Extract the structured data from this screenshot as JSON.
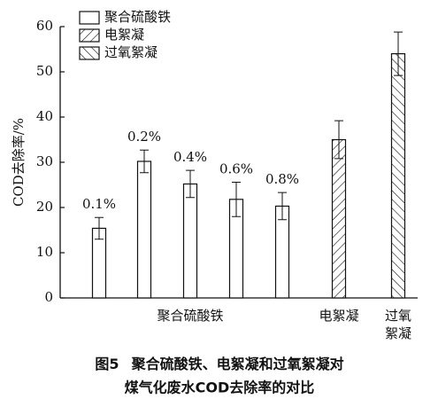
{
  "chart_data": {
    "type": "bar",
    "y_label": "COD去除率/%",
    "ylim": [
      0,
      60
    ],
    "yticks": [
      0,
      10,
      20,
      30,
      40,
      50,
      60
    ],
    "x_labels": [
      [
        "聚合硫酸铁"
      ],
      [
        "电絮凝"
      ],
      [
        "过氧",
        "絮凝"
      ]
    ],
    "series": [
      {
        "name": "聚合硫酸铁",
        "color": "#ffffff",
        "hatch": "none",
        "values": [
          15.4,
          30.2,
          25.2,
          21.8,
          20.3
        ],
        "errors": [
          2.4,
          2.5,
          3.0,
          3.8,
          3.0
        ],
        "bar_labels": [
          "0.1%",
          "0.2%",
          "0.4%",
          "0.6%",
          "0.8%"
        ]
      },
      {
        "name": "电絮凝",
        "color": "#ffffff",
        "hatch": "/",
        "values": [
          35
        ],
        "errors": [
          4.2
        ]
      },
      {
        "name": "过氧絮凝",
        "color": "#ffffff",
        "hatch": "\\",
        "values": [
          54
        ],
        "errors": [
          4.8
        ]
      }
    ],
    "caption": {
      "label": "图5",
      "lines": [
        "聚合硫酸铁、电絮凝和过氧絮凝对",
        "煤气化废水COD去除率的对比"
      ]
    }
  }
}
